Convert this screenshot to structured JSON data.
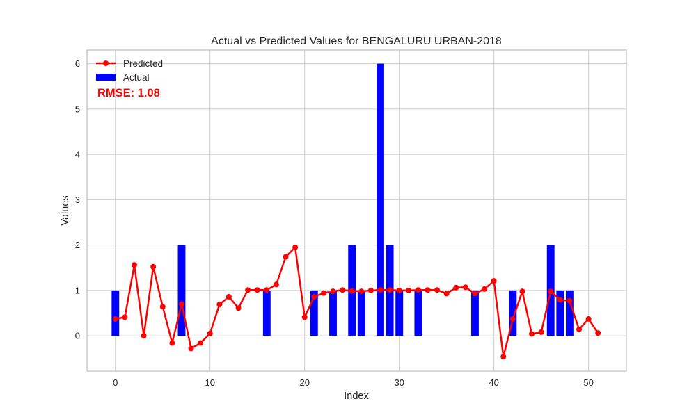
{
  "chart_data": {
    "type": "bar",
    "title": "Actual vs Predicted Values for BENGALURU URBAN-2018",
    "xlabel": "Index",
    "ylabel": "Values",
    "xlim": [
      -3,
      54
    ],
    "ylim": [
      -0.78,
      6.3
    ],
    "xticks": [
      0,
      10,
      20,
      30,
      40,
      50
    ],
    "yticks": [
      0,
      1,
      2,
      3,
      4,
      5,
      6
    ],
    "grid": true,
    "legend": {
      "placement": "top-left"
    },
    "annotation": "RMSE: 1.08",
    "series": [
      {
        "name": "Predicted",
        "kind": "line",
        "color": "#ff0000",
        "marker": "circle",
        "x": [
          0,
          1,
          2,
          3,
          4,
          5,
          6,
          7,
          8,
          9,
          10,
          11,
          12,
          13,
          14,
          15,
          16,
          17,
          18,
          19,
          20,
          21,
          22,
          23,
          24,
          25,
          26,
          27,
          28,
          29,
          30,
          31,
          32,
          33,
          34,
          35,
          36,
          37,
          38,
          39,
          40,
          41,
          42,
          43,
          44,
          45,
          46,
          47,
          48,
          49,
          50,
          51
        ],
        "values": [
          0.37,
          0.41,
          1.56,
          0.0,
          1.52,
          0.64,
          -0.16,
          0.7,
          -0.28,
          -0.16,
          0.05,
          0.69,
          0.86,
          0.61,
          1.01,
          1.01,
          1.01,
          1.13,
          1.74,
          1.95,
          0.41,
          0.86,
          0.94,
          0.98,
          1.01,
          0.99,
          0.98,
          1.0,
          1.01,
          1.01,
          1.0,
          1.0,
          1.01,
          1.01,
          1.01,
          0.93,
          1.06,
          1.07,
          0.93,
          1.03,
          1.21,
          -0.46,
          0.37,
          0.98,
          0.04,
          0.08,
          0.98,
          0.79,
          0.77,
          0.14,
          0.37,
          0.06
        ]
      },
      {
        "name": "Actual",
        "kind": "bar",
        "color": "#0000ff",
        "x": [
          0,
          7,
          16,
          21,
          23,
          25,
          26,
          28,
          29,
          30,
          32,
          38,
          42,
          46,
          47,
          48
        ],
        "values": [
          1,
          2,
          1,
          1,
          1,
          2,
          1,
          6,
          2,
          1,
          1,
          1,
          1,
          2,
          1,
          1
        ]
      }
    ]
  }
}
